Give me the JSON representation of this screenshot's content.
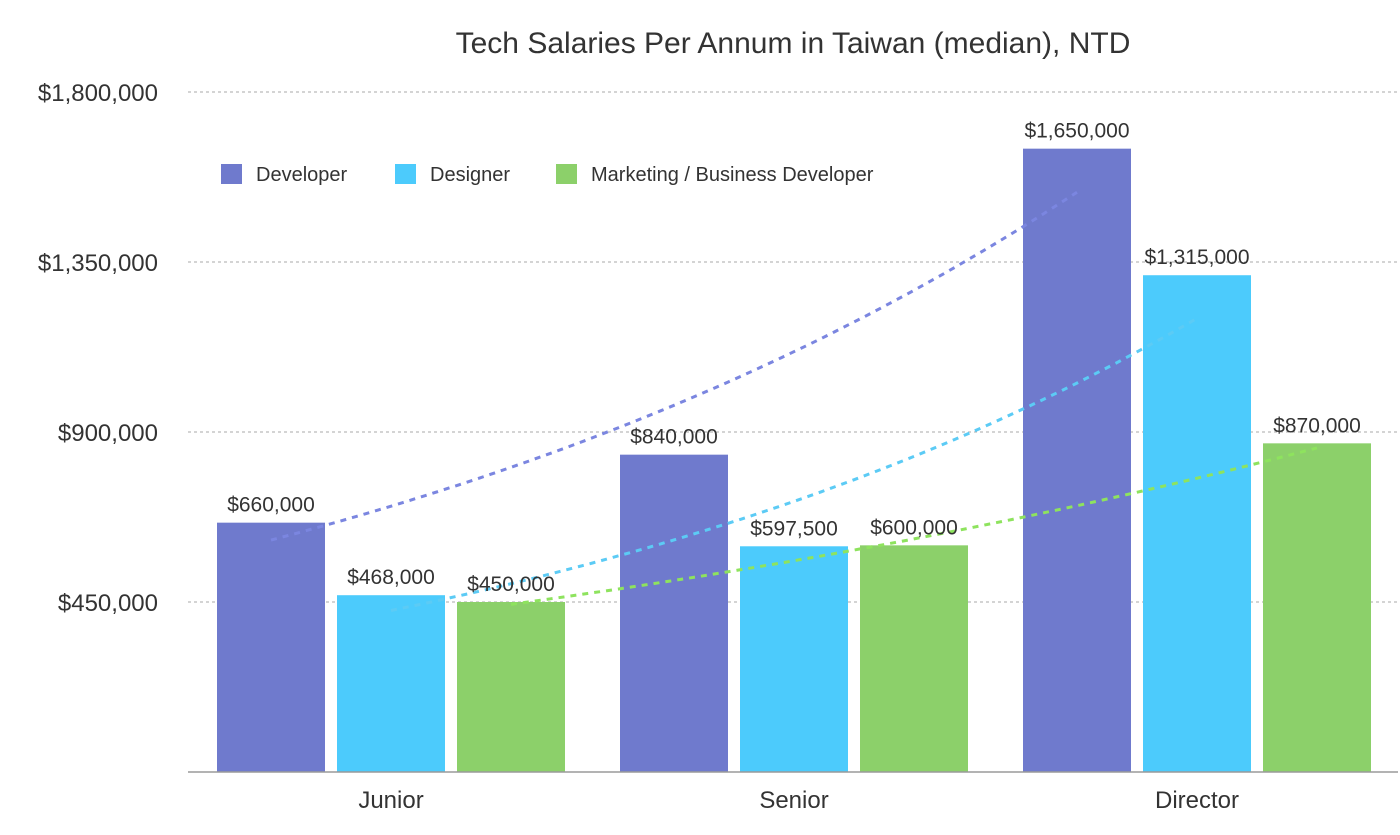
{
  "chart_data": {
    "type": "bar",
    "title": "Tech Salaries Per Annum in Taiwan (median), NTD",
    "xlabel": "",
    "ylabel": "",
    "categories": [
      "Junior",
      "Senior",
      "Director"
    ],
    "series": [
      {
        "name": "Developer",
        "color": "#6F7ACD",
        "trend_color": "#7B86E0",
        "values": [
          660000,
          840000,
          1650000
        ],
        "labels": [
          "$660,000",
          "$840,000",
          "$1,650,000"
        ]
      },
      {
        "name": "Designer",
        "color": "#4CCBFC",
        "trend_color": "#5CCBF5",
        "values": [
          468000,
          597500,
          1315000
        ],
        "labels": [
          "$468,000",
          "$597,500",
          "$1,315,000"
        ]
      },
      {
        "name": "Marketing / Business Developer",
        "color": "#8CD06A",
        "trend_color": "#8EE35E",
        "values": [
          450000,
          600000,
          870000
        ],
        "labels": [
          "$450,000",
          "$600,000",
          "$870,000"
        ]
      }
    ],
    "ylim": [
      0,
      1800000
    ],
    "yticks": [
      450000,
      900000,
      1350000,
      1800000
    ],
    "ytick_labels": [
      "$450,000",
      "$900,000",
      "$1,350,000",
      "$1,800,000"
    ],
    "grid": true,
    "legend_position": "top-left",
    "trendlines": "dashed exponential per series"
  }
}
